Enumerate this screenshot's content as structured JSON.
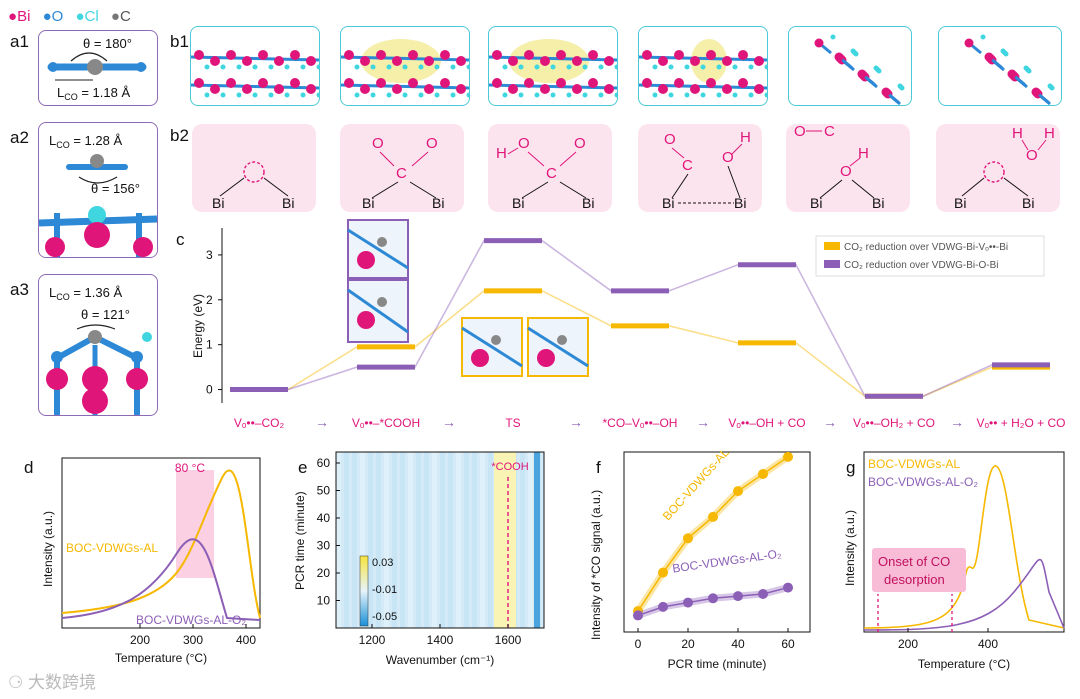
{
  "legend_atoms": {
    "bi": "Bi",
    "o": "O",
    "cl": "Cl",
    "c": "C"
  },
  "panels": {
    "a1": "a1",
    "a2": "a2",
    "a3": "a3",
    "b1": "b1",
    "b2": "b2",
    "c": "c",
    "d": "d",
    "e": "e",
    "f": "f",
    "g": "g"
  },
  "a1": {
    "theta": "θ = 180°",
    "lco": "L",
    "lco_sub": "CO",
    "lco_val": " = 1.18 Å"
  },
  "a2": {
    "theta": "θ = 156°",
    "lco": "L",
    "lco_sub": "CO",
    "lco_val": " = 1.28 Å"
  },
  "a3": {
    "theta": "θ = 121°",
    "lco": "L",
    "lco_sub": "CO",
    "lco_val": " = 1.36 Å"
  },
  "b2_labels": {
    "bi": "Bi",
    "o": "O",
    "c": "C",
    "h": "H"
  },
  "colors": {
    "yellow": "#f6b800",
    "purple": "#8c5fb7",
    "pink": "#e0157a",
    "blue": "#2d89d6",
    "cyan": "#3fd6e0"
  },
  "chart_c": {
    "type": "line",
    "ylabel": "Energy (eV)",
    "yticks": [
      "0",
      "1",
      "2",
      "3"
    ],
    "ylim": [
      -0.3,
      3.6
    ],
    "categories": [
      "Vₒ••–CO₂",
      "Vₒ••–*COOH",
      "TS",
      "*CO–Vₒ••–OH",
      "Vₒ••–OH + CO",
      "Vₒ••–OH₂ + CO",
      "Vₒ•• + H₂O + CO"
    ],
    "series": [
      {
        "name": "CO₂ reduction over VDWG-Bi-Vₒ••-Bi",
        "values": [
          0,
          0.95,
          2.2,
          1.42,
          1.04,
          -0.15,
          0.5
        ],
        "color": "#f6b800"
      },
      {
        "name": "CO₂ reduction over VDWG-Bi-O-Bi",
        "values": [
          0,
          0.5,
          3.32,
          2.2,
          2.78,
          -0.15,
          0.55
        ],
        "color": "#8c5fb7"
      }
    ]
  },
  "chart_d": {
    "type": "line",
    "ylabel": "Intensity (a.u.)",
    "xlabel": "Temperature (°C)",
    "xticks": [
      "200",
      "300",
      "400"
    ],
    "annotation": "80 °C",
    "series": [
      {
        "name": "BOC-VDWGs-AL"
      },
      {
        "name": "BOC-VDWGs-AL-O₂"
      }
    ]
  },
  "chart_e": {
    "type": "heatmap",
    "ylabel": "PCR time (minute)",
    "xlabel": "Wavenumber (cm⁻¹)",
    "xticks": [
      "1200",
      "1400",
      "1600"
    ],
    "yticks": [
      "10",
      "20",
      "30",
      "40",
      "50",
      "60"
    ],
    "colorbar": [
      "0.03",
      "-0.01",
      "-0.05"
    ],
    "annotation": "*COOH"
  },
  "chart_f": {
    "type": "line",
    "ylabel": "Intensity of *CO signal (a.u.)",
    "xlabel": "PCR time (minute)",
    "xticks": [
      "0",
      "20",
      "40",
      "60"
    ],
    "x": [
      0,
      10,
      20,
      30,
      40,
      50,
      60
    ],
    "series": [
      {
        "name": "BOC-VDWGs-AL",
        "values": [
          0.6,
          2.4,
          4.0,
          5.0,
          6.2,
          7.0,
          7.8
        ]
      },
      {
        "name": "BOC-VDWGs-AL-O₂",
        "values": [
          0.4,
          0.8,
          1.0,
          1.2,
          1.3,
          1.4,
          1.7
        ]
      }
    ]
  },
  "chart_g": {
    "type": "line",
    "ylabel": "Intensity (a.u.)",
    "xlabel": "Temperature (°C)",
    "xticks": [
      "200",
      "400"
    ],
    "annotation": "Onset of CO desorption",
    "annotation_l1": "Onset of CO",
    "annotation_l2": "desorption",
    "series": [
      {
        "name": "BOC-VDWGs-AL"
      },
      {
        "name": "BOC-VDWGs-AL-O₂"
      }
    ]
  },
  "watermark": "大数跨境"
}
